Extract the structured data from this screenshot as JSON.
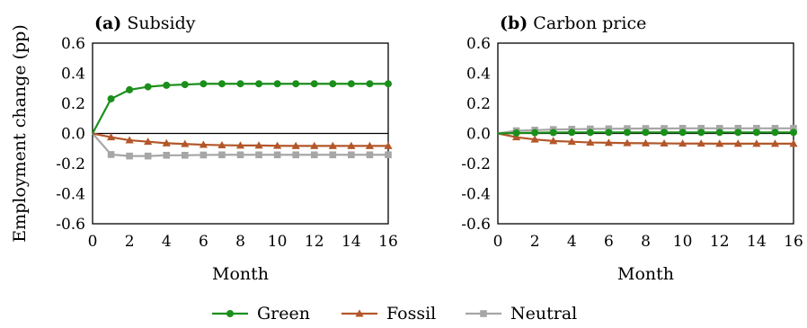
{
  "chart_data": [
    {
      "type": "line",
      "panel_label": "(a)",
      "title": "Subsidy",
      "xlabel": "Month",
      "ylabel": "Employment change (pp)",
      "xlim": [
        0,
        16
      ],
      "ylim": [
        -0.6,
        0.6
      ],
      "xticks": [
        "0",
        "2",
        "4",
        "6",
        "8",
        "10",
        "12",
        "14",
        "16"
      ],
      "yticks": [
        "-0.6",
        "-0.4",
        "-0.2",
        "0.0",
        "0.2",
        "0.4",
        "0.6"
      ],
      "x": [
        0,
        1,
        2,
        3,
        4,
        5,
        6,
        7,
        8,
        9,
        10,
        11,
        12,
        13,
        14,
        15,
        16
      ],
      "series": [
        {
          "name": "Green",
          "color": "#1a8f1a",
          "marker": "circle",
          "values": [
            0.0,
            0.23,
            0.29,
            0.31,
            0.32,
            0.325,
            0.33,
            0.33,
            0.33,
            0.33,
            0.33,
            0.33,
            0.33,
            0.33,
            0.33,
            0.33,
            0.33
          ]
        },
        {
          "name": "Fossil",
          "color": "#b3572a",
          "marker": "triangle",
          "values": [
            0.0,
            -0.025,
            -0.045,
            -0.055,
            -0.065,
            -0.07,
            -0.075,
            -0.078,
            -0.08,
            -0.08,
            -0.082,
            -0.083,
            -0.083,
            -0.083,
            -0.083,
            -0.083,
            -0.083
          ]
        },
        {
          "name": "Neutral",
          "color": "#a6a6a6",
          "marker": "square",
          "values": [
            0.0,
            -0.14,
            -0.15,
            -0.15,
            -0.145,
            -0.145,
            -0.143,
            -0.142,
            -0.142,
            -0.142,
            -0.142,
            -0.142,
            -0.142,
            -0.142,
            -0.142,
            -0.142,
            -0.142
          ]
        }
      ]
    },
    {
      "type": "line",
      "panel_label": "(b)",
      "title": "Carbon price",
      "xlabel": "Month",
      "ylabel": "",
      "xlim": [
        0,
        16
      ],
      "ylim": [
        -0.6,
        0.6
      ],
      "xticks": [
        "0",
        "2",
        "4",
        "6",
        "8",
        "10",
        "12",
        "14",
        "16"
      ],
      "yticks": [
        "-0.6",
        "-0.4",
        "-0.2",
        "0.0",
        "0.2",
        "0.4",
        "0.6"
      ],
      "x": [
        0,
        1,
        2,
        3,
        4,
        5,
        6,
        7,
        8,
        9,
        10,
        11,
        12,
        13,
        14,
        15,
        16
      ],
      "series": [
        {
          "name": "Green",
          "color": "#1a8f1a",
          "marker": "circle",
          "values": [
            0.0,
            0.003,
            0.005,
            0.006,
            0.007,
            0.007,
            0.007,
            0.007,
            0.007,
            0.007,
            0.007,
            0.007,
            0.007,
            0.007,
            0.007,
            0.007,
            0.007
          ]
        },
        {
          "name": "Fossil",
          "color": "#b3572a",
          "marker": "triangle",
          "values": [
            0.0,
            -0.025,
            -0.04,
            -0.05,
            -0.055,
            -0.06,
            -0.062,
            -0.064,
            -0.065,
            -0.066,
            -0.067,
            -0.067,
            -0.068,
            -0.068,
            -0.068,
            -0.068,
            -0.068
          ]
        },
        {
          "name": "Neutral",
          "color": "#a6a6a6",
          "marker": "square",
          "values": [
            0.0,
            0.018,
            0.022,
            0.026,
            0.028,
            0.03,
            0.031,
            0.032,
            0.033,
            0.033,
            0.034,
            0.034,
            0.034,
            0.034,
            0.034,
            0.034,
            0.034
          ]
        }
      ]
    }
  ],
  "legend": {
    "placement": "bottom-center",
    "items": [
      {
        "label": "Green",
        "color": "#1a8f1a",
        "marker": "circle"
      },
      {
        "label": "Fossil",
        "color": "#b3572a",
        "marker": "triangle"
      },
      {
        "label": "Neutral",
        "color": "#a6a6a6",
        "marker": "square"
      }
    ]
  }
}
